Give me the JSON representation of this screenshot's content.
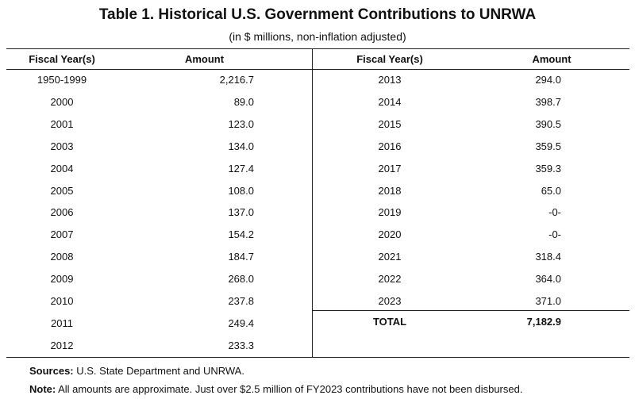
{
  "title": "Table 1. Historical U.S. Government Contributions to UNRWA",
  "subtitle": "(in $ millions, non-inflation adjusted)",
  "headers": {
    "year": "Fiscal Year(s)",
    "amount": "Amount"
  },
  "left_rows": [
    {
      "year": "1950-1999",
      "amount": "2,216.7"
    },
    {
      "year": "2000",
      "amount": "89.0"
    },
    {
      "year": "2001",
      "amount": "123.0"
    },
    {
      "year": "2003",
      "amount": "134.0"
    },
    {
      "year": "2004",
      "amount": "127.4"
    },
    {
      "year": "2005",
      "amount": "108.0"
    },
    {
      "year": "2006",
      "amount": "137.0"
    },
    {
      "year": "2007",
      "amount": "154.2"
    },
    {
      "year": "2008",
      "amount": "184.7"
    },
    {
      "year": "2009",
      "amount": "268.0"
    },
    {
      "year": "2010",
      "amount": "237.8"
    },
    {
      "year": "2011",
      "amount": "249.4"
    },
    {
      "year": "2012",
      "amount": "233.3"
    }
  ],
  "right_rows": [
    {
      "year": "2013",
      "amount": "294.0"
    },
    {
      "year": "2014",
      "amount": "398.7"
    },
    {
      "year": "2015",
      "amount": "390.5"
    },
    {
      "year": "2016",
      "amount": "359.5"
    },
    {
      "year": "2017",
      "amount": "359.3"
    },
    {
      "year": "2018",
      "amount": "65.0"
    },
    {
      "year": "2019",
      "amount": "-0-"
    },
    {
      "year": "2020",
      "amount": "-0-"
    },
    {
      "year": "2021",
      "amount": "318.4"
    },
    {
      "year": "2022",
      "amount": "364.0"
    },
    {
      "year": "2023",
      "amount": "371.0"
    }
  ],
  "total": {
    "label": "TOTAL",
    "amount": "7,182.9"
  },
  "footer": {
    "sources_label": "Sources:",
    "sources_text": "U.S. State Department and UNRWA.",
    "note_label": "Note:",
    "note_text": "All amounts are approximate. Just over $2.5 million of FY2023 contributions have not been disbursed."
  }
}
